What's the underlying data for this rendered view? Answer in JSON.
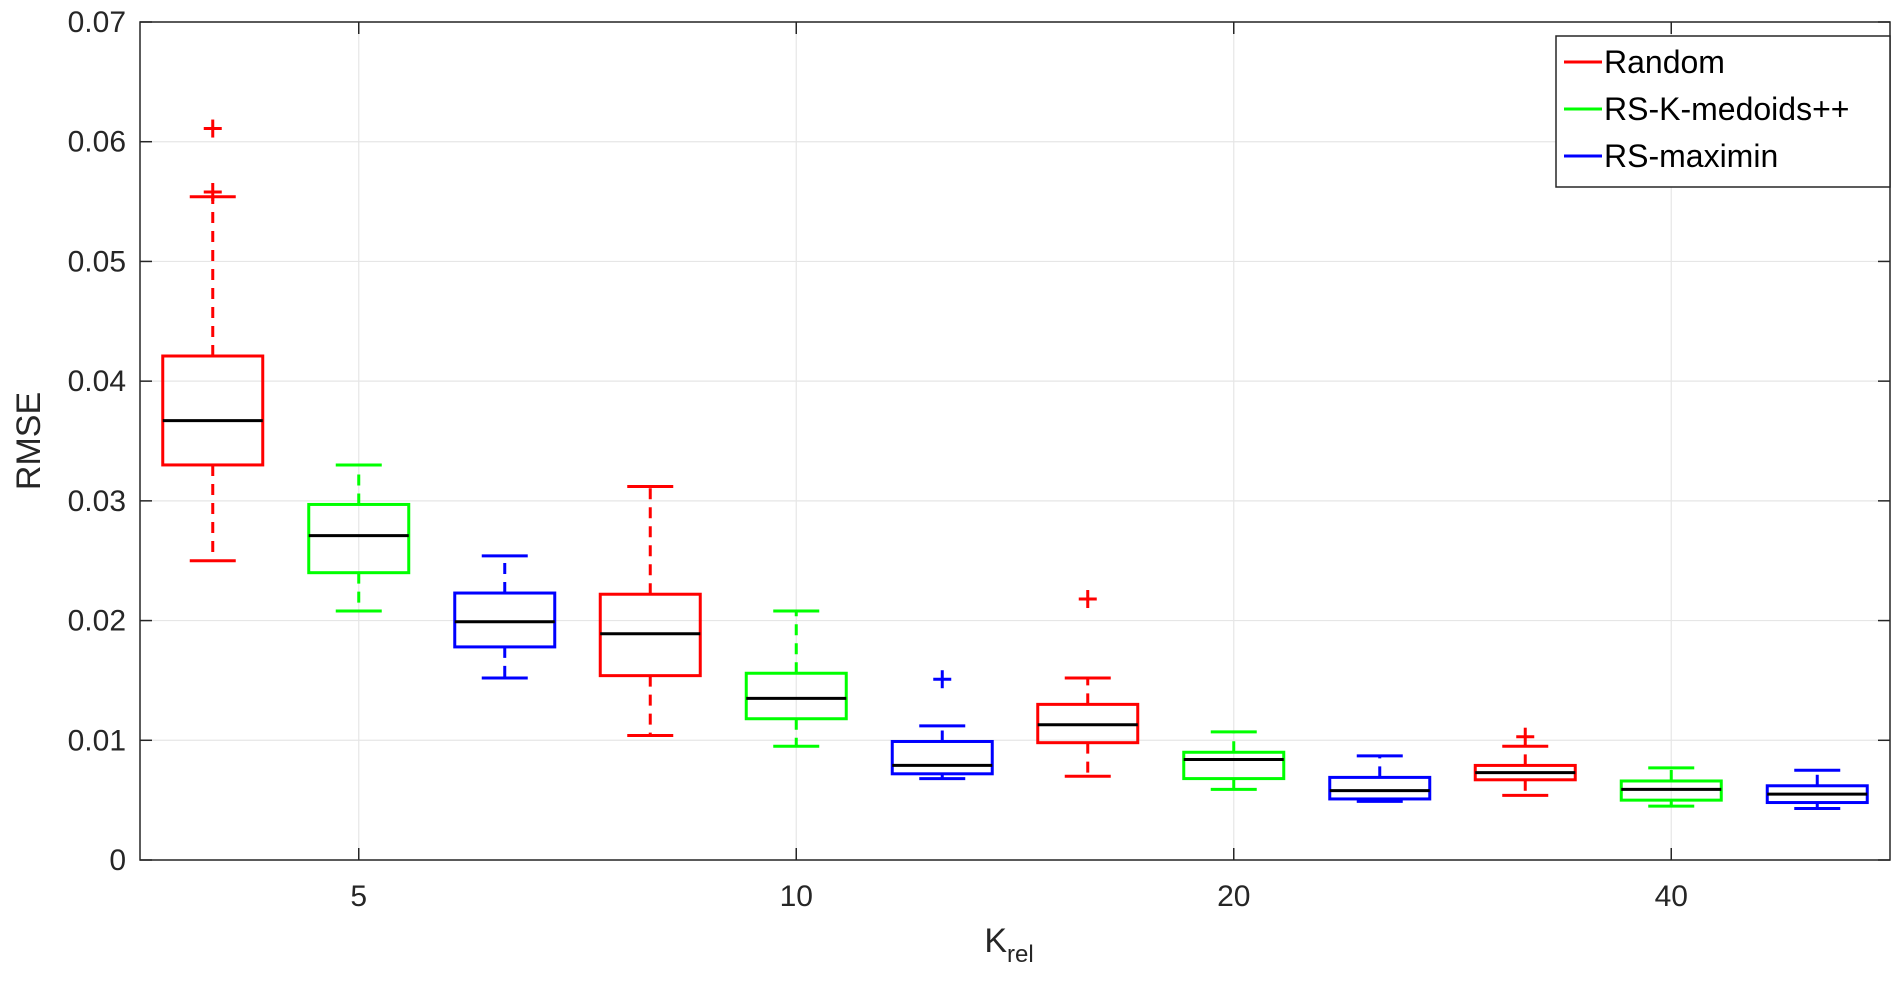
{
  "chart_data": {
    "type": "boxplot",
    "title": "",
    "xlabel": "K",
    "xlabel_subscript": "rel",
    "ylabel": "RMSE",
    "categories": [
      "5",
      "10",
      "20",
      "40"
    ],
    "ylim": [
      0,
      0.07
    ],
    "yticks": [
      0,
      0.01,
      0.02,
      0.03,
      0.04,
      0.05,
      0.06,
      0.07
    ],
    "ytick_labels": [
      "0",
      "0.01",
      "0.02",
      "0.03",
      "0.04",
      "0.05",
      "0.06",
      "0.07"
    ],
    "grid": true,
    "legend_position": "top-right",
    "series": [
      {
        "name": "Random",
        "color": "#ff0000",
        "boxes": [
          {
            "category": "5",
            "min": 0.025,
            "q1": 0.033,
            "median": 0.0367,
            "q3": 0.0421,
            "max": 0.0554,
            "outliers": [
              0.0611,
              0.0558
            ]
          },
          {
            "category": "10",
            "min": 0.0104,
            "q1": 0.0154,
            "median": 0.0189,
            "q3": 0.0222,
            "max": 0.0312,
            "outliers": []
          },
          {
            "category": "20",
            "min": 0.007,
            "q1": 0.0098,
            "median": 0.0113,
            "q3": 0.013,
            "max": 0.0152,
            "outliers": [
              0.0218
            ]
          },
          {
            "category": "40",
            "min": 0.0054,
            "q1": 0.0067,
            "median": 0.0073,
            "q3": 0.0079,
            "max": 0.0095,
            "outliers": [
              0.0103
            ]
          }
        ]
      },
      {
        "name": "RS-K-medoids++",
        "color": "#00ff00",
        "boxes": [
          {
            "category": "5",
            "min": 0.0208,
            "q1": 0.024,
            "median": 0.0271,
            "q3": 0.0297,
            "max": 0.033,
            "outliers": []
          },
          {
            "category": "10",
            "min": 0.0095,
            "q1": 0.0118,
            "median": 0.0135,
            "q3": 0.0156,
            "max": 0.0208,
            "outliers": []
          },
          {
            "category": "20",
            "min": 0.0059,
            "q1": 0.0068,
            "median": 0.0084,
            "q3": 0.009,
            "max": 0.0107,
            "outliers": []
          },
          {
            "category": "40",
            "min": 0.0045,
            "q1": 0.005,
            "median": 0.0059,
            "q3": 0.0066,
            "max": 0.0077,
            "outliers": []
          }
        ]
      },
      {
        "name": "RS-maximin",
        "color": "#0000ff",
        "boxes": [
          {
            "category": "5",
            "min": 0.0152,
            "q1": 0.0178,
            "median": 0.0199,
            "q3": 0.0223,
            "max": 0.0254,
            "outliers": []
          },
          {
            "category": "10",
            "min": 0.0068,
            "q1": 0.0072,
            "median": 0.0079,
            "q3": 0.0099,
            "max": 0.0112,
            "outliers": [
              0.0151
            ]
          },
          {
            "category": "20",
            "min": 0.0049,
            "q1": 0.0051,
            "median": 0.0058,
            "q3": 0.0069,
            "max": 0.0087,
            "outliers": []
          },
          {
            "category": "40",
            "min": 0.0043,
            "q1": 0.0048,
            "median": 0.0055,
            "q3": 0.0062,
            "max": 0.0075,
            "outliers": []
          }
        ]
      }
    ]
  }
}
